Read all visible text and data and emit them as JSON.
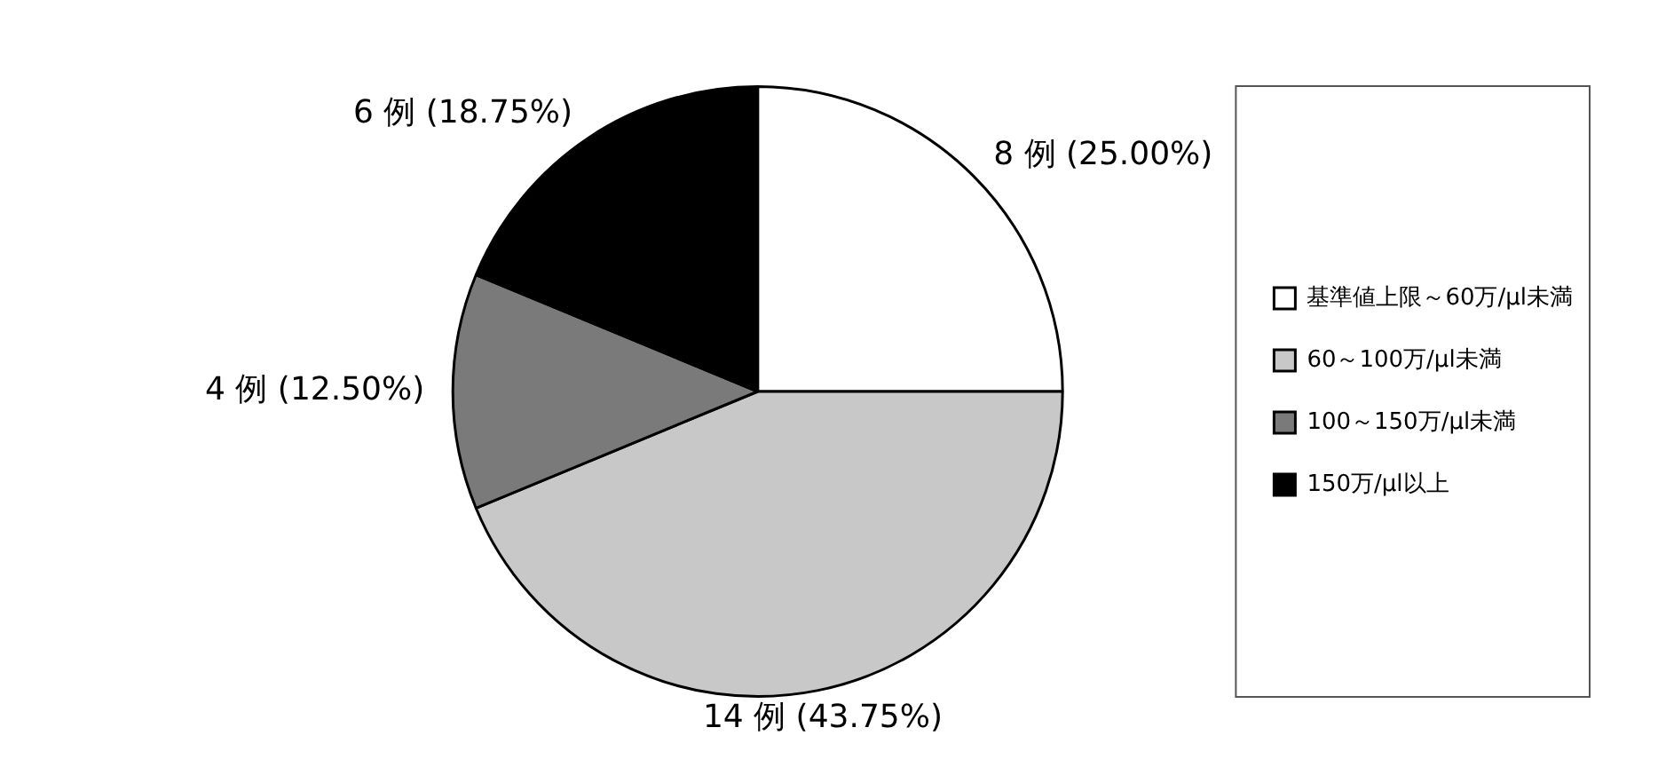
{
  "chart_data": {
    "type": "pie",
    "categories": [
      "基準値上限～60万/μl未満",
      "60～100万/μl未満",
      "100～150万/μl未満",
      "150万/μl以上"
    ],
    "values": [
      8,
      14,
      4,
      6
    ],
    "colors": [
      "#ffffff",
      "#c8c8c8",
      "#7a7a7a",
      "#000000"
    ],
    "value_labels": [
      "8 例 (25.00%)",
      "14 例 (43.75%)",
      "4 例 (12.50%)",
      "6 例 (18.75%)"
    ],
    "legend": "right"
  }
}
